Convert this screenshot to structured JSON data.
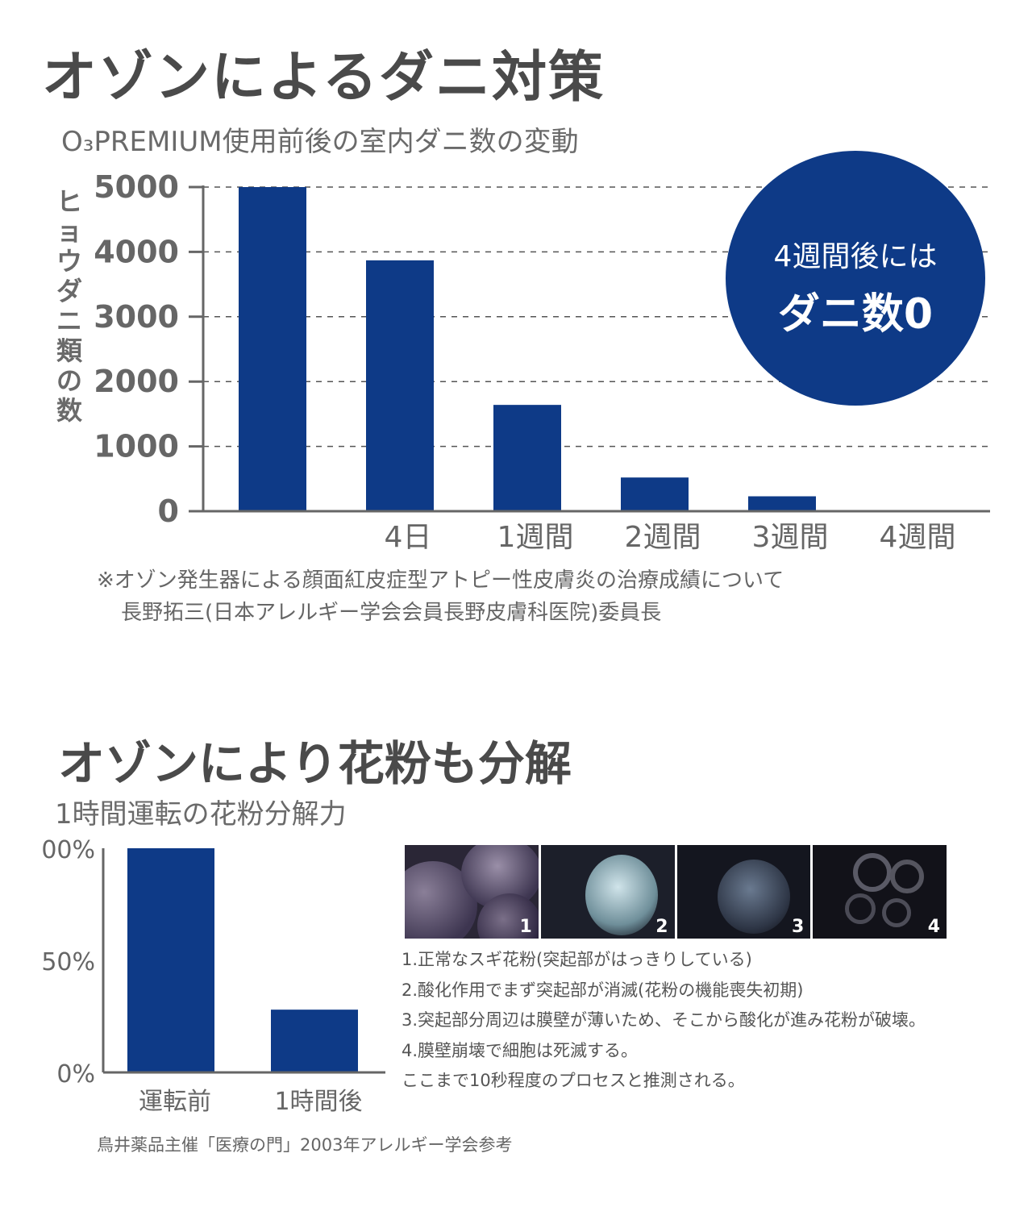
{
  "section1": {
    "title": "オゾンによるダニ対策",
    "subtitle": "O₃PREMIUM使用前後の室内ダニ数の変動",
    "ylabel": "ヒョウダニ類の数",
    "badge_line1": "4週間後には",
    "badge_line2": "ダニ数0",
    "note_line1": "※オゾン発生器による顔面紅皮症型アトピー性皮膚炎の治療成績について",
    "note_line2": "長野拓三(日本アレルギー学会会員長野皮膚科医院)委員長"
  },
  "section2": {
    "title": "オゾンにより花粉も分解",
    "subtitle": "1時間運転の花粉分解力",
    "photo_labels": [
      "1",
      "2",
      "3",
      "4"
    ],
    "captions": [
      "1.正常なスギ花粉(突起部がはっきりしている)",
      "2.酸化作用でまず突起部が消滅(花粉の機能喪失初期)",
      "3.突起部分周辺は膜壁が薄いため、そこから酸化が進み花粉が破壊。",
      "4.膜壁崩壊で細胞は死滅する。",
      "ここまで10秒程度のプロセスと推測される。"
    ],
    "note": "鳥井薬品主催「医療の門」2003年アレルギー学会参考"
  },
  "colors": {
    "bar": "#0e3a87",
    "axis": "#666666",
    "grid": "#555555",
    "text": "#555555"
  },
  "chart_data": [
    {
      "type": "bar",
      "categories": [
        "",
        "4日",
        "1週間",
        "2週間",
        "3週間",
        "4週間"
      ],
      "values": [
        5000,
        3870,
        1640,
        520,
        230,
        0
      ],
      "ylim": [
        0,
        5000
      ],
      "yticks": [
        "0",
        "1000",
        "2000",
        "3000",
        "4000",
        "5000"
      ],
      "ylabel": "ヒョウダニ類の数",
      "grid": true
    },
    {
      "type": "bar",
      "categories": [
        "運転前",
        "1時間後"
      ],
      "values": [
        100,
        28
      ],
      "ylim": [
        0,
        100
      ],
      "yticks": [
        "0%",
        "50%",
        "00%"
      ],
      "grid": false
    }
  ]
}
